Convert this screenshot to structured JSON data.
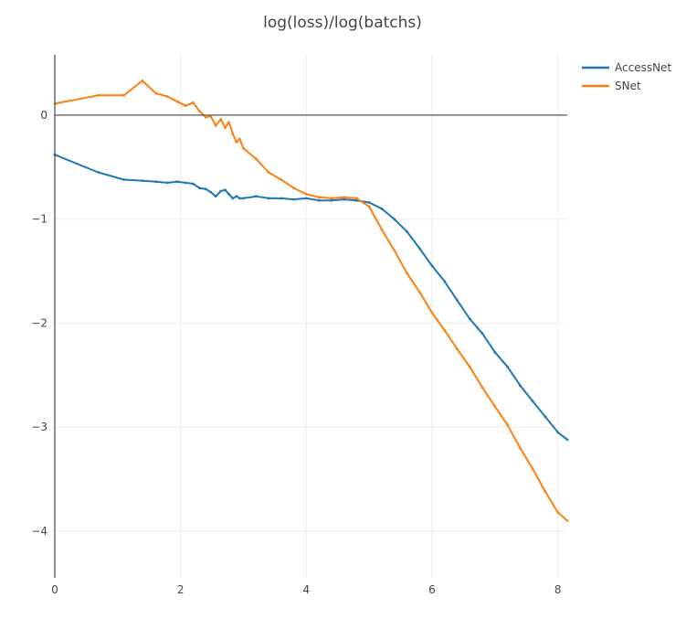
{
  "chart_data": {
    "type": "line",
    "title": "log(loss)/log(batchs)",
    "xlabel": "",
    "ylabel": "",
    "xlim": [
      0,
      8.15
    ],
    "ylim": [
      -4.45,
      0.58
    ],
    "x_ticks": [
      0,
      2,
      4,
      6,
      8
    ],
    "y_ticks": [
      0,
      -1,
      -2,
      -3,
      -4
    ],
    "x_tick_labels": [
      "0",
      "2",
      "4",
      "6",
      "8"
    ],
    "y_tick_labels": [
      "0",
      "−1",
      "−2",
      "−3",
      "−4"
    ],
    "grid": true,
    "zero_line": true,
    "legend_position": "top-right",
    "series": [
      {
        "name": "AccessNet",
        "color": "#1f77b4",
        "x": [
          0,
          0.69,
          1.1,
          1.39,
          1.61,
          1.79,
          1.95,
          2.08,
          2.2,
          2.3,
          2.4,
          2.48,
          2.56,
          2.64,
          2.71,
          2.77,
          2.83,
          2.89,
          2.94,
          3.0,
          3.2,
          3.4,
          3.6,
          3.8,
          4.0,
          4.2,
          4.4,
          4.6,
          4.8,
          5.0,
          5.2,
          5.4,
          5.6,
          5.8,
          6.0,
          6.2,
          6.4,
          6.6,
          6.8,
          7.0,
          7.2,
          7.4,
          7.6,
          7.8,
          8.0,
          8.15
        ],
        "y": [
          -0.38,
          -0.55,
          -0.62,
          -0.63,
          -0.64,
          -0.65,
          -0.64,
          -0.65,
          -0.66,
          -0.7,
          -0.71,
          -0.74,
          -0.78,
          -0.73,
          -0.72,
          -0.76,
          -0.8,
          -0.78,
          -0.8,
          -0.8,
          -0.78,
          -0.8,
          -0.8,
          -0.81,
          -0.8,
          -0.82,
          -0.82,
          -0.81,
          -0.82,
          -0.84,
          -0.9,
          -1.0,
          -1.12,
          -1.28,
          -1.45,
          -1.6,
          -1.78,
          -1.96,
          -2.1,
          -2.28,
          -2.42,
          -2.6,
          -2.75,
          -2.9,
          -3.05,
          -3.12
        ]
      },
      {
        "name": "SNet",
        "color": "#ff7f0e",
        "x": [
          0,
          0.69,
          1.1,
          1.39,
          1.61,
          1.79,
          1.95,
          2.08,
          2.2,
          2.3,
          2.4,
          2.48,
          2.56,
          2.64,
          2.71,
          2.77,
          2.83,
          2.89,
          2.94,
          3.0,
          3.2,
          3.4,
          3.6,
          3.8,
          4.0,
          4.2,
          4.4,
          4.6,
          4.8,
          5.0,
          5.2,
          5.4,
          5.6,
          5.8,
          6.0,
          6.2,
          6.4,
          6.6,
          6.8,
          7.0,
          7.2,
          7.4,
          7.6,
          7.8,
          8.0,
          8.15
        ],
        "y": [
          0.11,
          0.19,
          0.19,
          0.33,
          0.21,
          0.18,
          0.13,
          0.09,
          0.12,
          0.04,
          -0.02,
          -0.01,
          -0.1,
          -0.04,
          -0.12,
          -0.07,
          -0.18,
          -0.26,
          -0.23,
          -0.32,
          -0.42,
          -0.55,
          -0.62,
          -0.7,
          -0.76,
          -0.79,
          -0.8,
          -0.79,
          -0.8,
          -0.88,
          -1.1,
          -1.3,
          -1.52,
          -1.7,
          -1.9,
          -2.07,
          -2.25,
          -2.42,
          -2.62,
          -2.8,
          -2.98,
          -3.2,
          -3.4,
          -3.62,
          -3.82,
          -3.9
        ]
      }
    ]
  }
}
